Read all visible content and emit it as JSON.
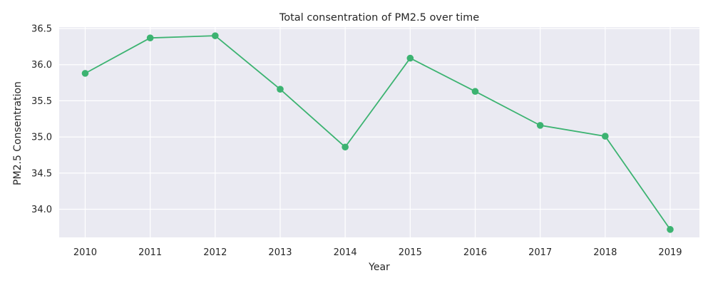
{
  "chart_data": {
    "type": "line",
    "title": "Total consentration of PM2.5 over time",
    "xlabel": "Year",
    "ylabel": "PM2.5 Consentration",
    "x": [
      2010,
      2011,
      2012,
      2013,
      2014,
      2015,
      2016,
      2017,
      2018,
      2019
    ],
    "series": [
      {
        "values": [
          35.88,
          36.37,
          36.4,
          35.66,
          34.86,
          36.09,
          35.63,
          35.16,
          35.01,
          33.72
        ],
        "color": "#3cb371"
      }
    ],
    "xlim": [
      2009.6,
      2019.45
    ],
    "ylim": [
      33.61,
      36.52
    ],
    "yticks": [
      34.0,
      34.5,
      35.0,
      35.5,
      36.0,
      36.5
    ],
    "ytick_labels": [
      "34.0",
      "34.5",
      "35.0",
      "35.5",
      "36.0",
      "36.5"
    ],
    "xticks": [
      2010,
      2011,
      2012,
      2013,
      2014,
      2015,
      2016,
      2017,
      2018,
      2019
    ],
    "xtick_labels": [
      "2010",
      "2011",
      "2012",
      "2013",
      "2014",
      "2015",
      "2016",
      "2017",
      "2018",
      "2019"
    ],
    "grid": true,
    "legend": false,
    "background_color": "#eaeaf2",
    "grid_color": "#ffffff"
  }
}
